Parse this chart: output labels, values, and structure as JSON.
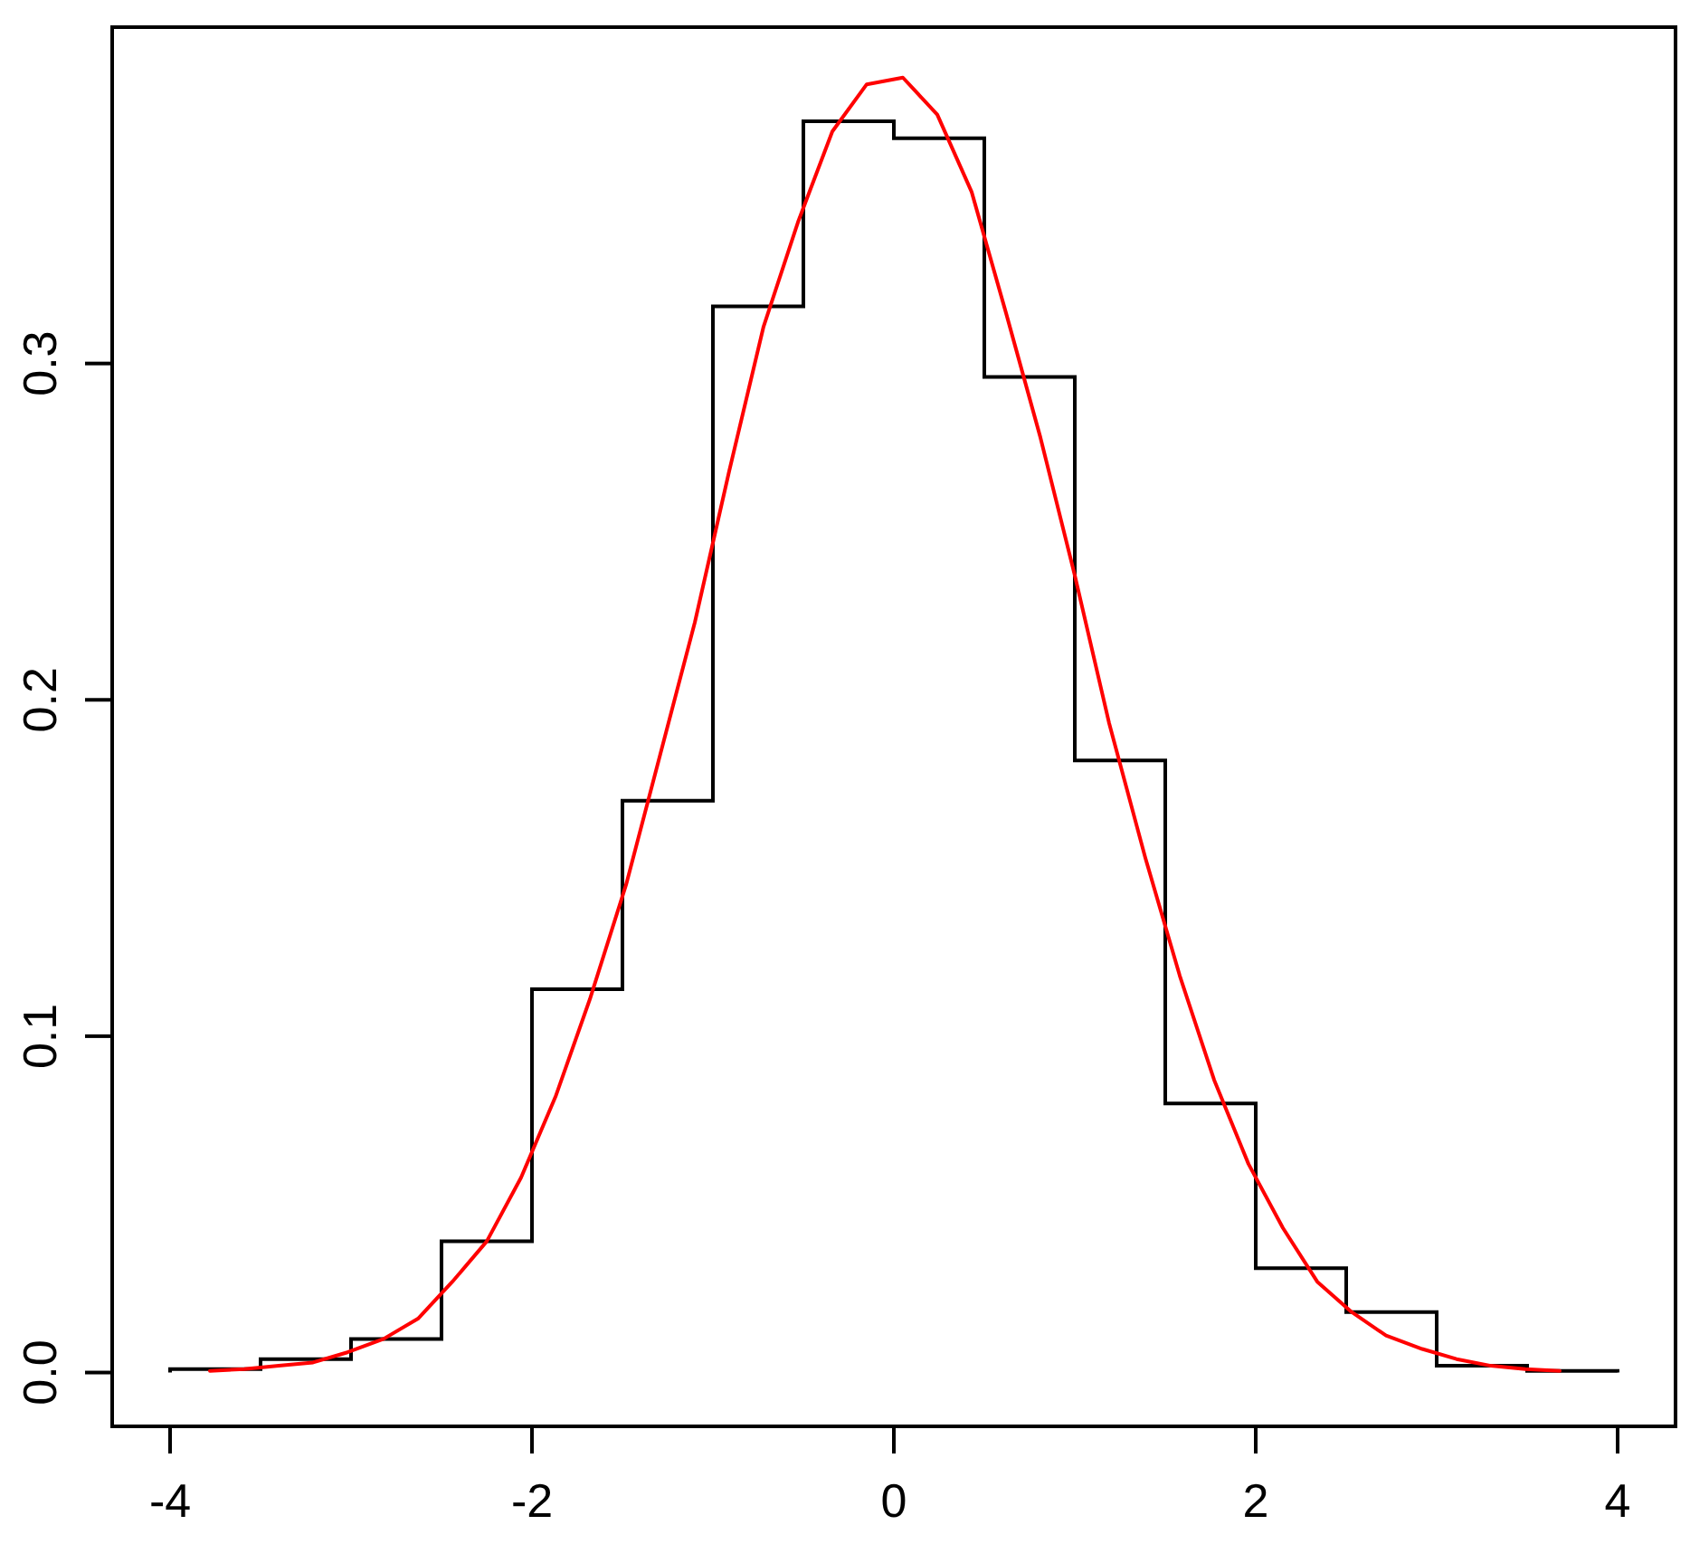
{
  "chart_data": {
    "type": "histogram",
    "series": [
      {
        "color": "#000000",
        "bins": [
          -4,
          -3.5,
          -3,
          -2.5,
          -2,
          -1.5,
          -1,
          -0.5,
          0,
          0.5,
          1,
          1.5,
          2,
          2.5,
          3,
          3.5,
          4
        ],
        "values": [
          0.001,
          0.004,
          0.01,
          0.039,
          0.114,
          0.17,
          0.317,
          0.372,
          0.367,
          0.296,
          0.182,
          0.08,
          0.031,
          0.018,
          0.002,
          0.0005
        ]
      },
      {
        "type": "line",
        "color": "#ff0000",
        "x": [
          -3.78,
          -3.59,
          -3.4,
          -3.21,
          -3.02,
          -2.82,
          -2.63,
          -2.44,
          -2.25,
          -2.06,
          -1.87,
          -1.68,
          -1.48,
          -1.29,
          -1.1,
          -0.91,
          -0.72,
          -0.53,
          -0.34,
          -0.15,
          0.05,
          0.24,
          0.43,
          0.62,
          0.81,
          1.0,
          1.19,
          1.39,
          1.58,
          1.77,
          1.96,
          2.15,
          2.34,
          2.53,
          2.72,
          2.92,
          3.11,
          3.3,
          3.49,
          3.68
        ],
        "values": [
          0.0005,
          0.001,
          0.002,
          0.003,
          0.006,
          0.01,
          0.016,
          0.027,
          0.039,
          0.058,
          0.082,
          0.111,
          0.145,
          0.184,
          0.223,
          0.268,
          0.311,
          0.342,
          0.369,
          0.383,
          0.385,
          0.374,
          0.351,
          0.315,
          0.278,
          0.237,
          0.193,
          0.153,
          0.118,
          0.087,
          0.062,
          0.043,
          0.027,
          0.018,
          0.011,
          0.007,
          0.004,
          0.002,
          0.001,
          0.0005
        ]
      }
    ],
    "xlim": [
      -4.32,
      4.32
    ],
    "ylim": [
      -0.016,
      0.4
    ],
    "xticks": [
      -4,
      -2,
      0,
      2,
      4
    ],
    "yticks": [
      {
        "value": 0,
        "label": "0.0"
      },
      {
        "value": 0.1,
        "label": "0.1"
      },
      {
        "value": 0.2,
        "label": "0.2"
      },
      {
        "value": 0.3,
        "label": "0.3"
      }
    ]
  }
}
